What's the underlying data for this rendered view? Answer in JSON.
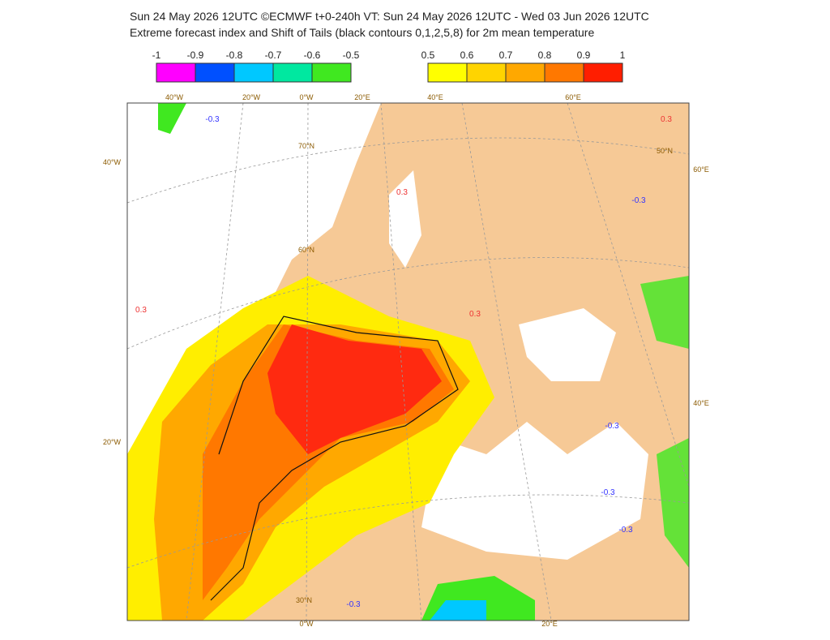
{
  "header": {
    "line1": "Sun 24 May 2026 12UTC ©ECMWF t+0-240h  VT: Sun 24 May 2026 12UTC - Wed 03 Jun 2026 12UTC",
    "line2": "Extreme forecast index and Shift of Tails (black contours 0,1,2,5,8) for 2m mean temperature"
  },
  "colorbars": [
    {
      "labels": [
        "-1",
        "-0.9",
        "-0.8",
        "-0.7",
        "-0.6",
        "-0.5"
      ],
      "colors": [
        "#ff00ff",
        "#0050ff",
        "#00c8ff",
        "#00e8a0",
        "#40e820"
      ]
    },
    {
      "labels": [
        "0.5",
        "0.6",
        "0.7",
        "0.8",
        "0.9",
        "1"
      ],
      "colors": [
        "#ffff00",
        "#ffd400",
        "#ffa800",
        "#ff7800",
        "#ff1e00"
      ]
    }
  ],
  "map": {
    "lon_labels": [
      "40°W",
      "20°W",
      "0°W",
      "20°E",
      "40°E",
      "60°E",
      "40°W",
      "20°W",
      "60°E",
      "40°E",
      "0°W",
      "20°E"
    ],
    "lat_labels": [
      "70°N",
      "60°N",
      "50°N",
      "30°N"
    ],
    "contour_labels": [
      "-0.3",
      "0.3",
      "-0.3",
      "-0.3",
      "0.3",
      "0.3",
      "0.3",
      "-0.3",
      "-0.3",
      "-0.3"
    ]
  }
}
